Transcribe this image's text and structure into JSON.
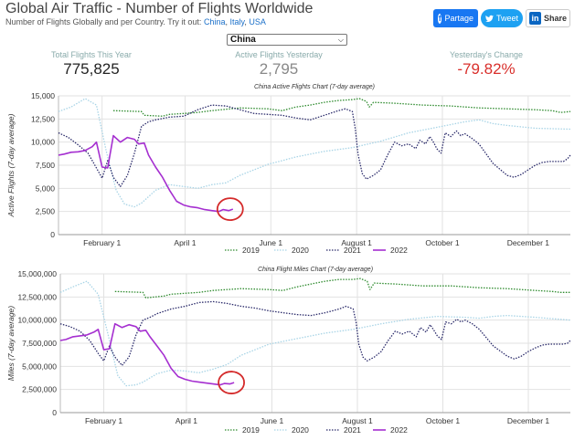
{
  "header": {
    "title": "Global Air Traffic - Number of Flights Worldwide",
    "subtitle_prefix": "Number of Flights Globally and per Country. Try it out: ",
    "links": [
      "China",
      "Italy",
      "USA"
    ]
  },
  "share": {
    "facebook": "Partage",
    "twitter": "Tweet",
    "linkedin": "Share"
  },
  "country_select": {
    "value": "China"
  },
  "stats": [
    {
      "label": "Total Flights This Year",
      "value": "775,825",
      "color": "#222222"
    },
    {
      "label": "Active Flights Yesterday",
      "value": "2,795",
      "color": "#888888"
    },
    {
      "label": "Yesterday's Change",
      "value": "-79.82%",
      "color": "#d9302c"
    }
  ],
  "colors": {
    "y2019": "#2e8b2e",
    "y2020": "#a8d4e6",
    "y2021": "#2a2a6a",
    "y2022": "#a52fd0",
    "circle": "#d42a2a"
  },
  "chart_data": [
    {
      "type": "line",
      "title": "China Active Flights Chart (7-day average)",
      "ylabel": "Active Flights (7-day average)",
      "x_ticks": [
        "February 1",
        "April 1",
        "June 1",
        "August 1",
        "October 1",
        "December 1"
      ],
      "ylim": [
        0,
        15000
      ],
      "y_ticks": [
        "0",
        "2,500",
        "5,000",
        "7,500",
        "10,000",
        "12,500",
        "15,000"
      ],
      "day_of_year_range": [
        1,
        365
      ],
      "series": [
        {
          "name": "2019",
          "x": [
            40,
            60,
            62,
            75,
            80,
            90,
            100,
            110,
            130,
            150,
            160,
            170,
            180,
            190,
            200,
            210,
            215,
            220,
            222,
            225,
            240,
            260,
            280,
            300,
            320,
            340,
            352,
            358,
            365
          ],
          "y": [
            13400,
            13300,
            12900,
            12800,
            13000,
            13100,
            13200,
            13400,
            13700,
            13600,
            13400,
            13800,
            14000,
            14300,
            14500,
            14600,
            14700,
            14400,
            13800,
            14300,
            14200,
            14000,
            13900,
            13700,
            13600,
            13500,
            13400,
            13200,
            13300
          ]
        },
        {
          "name": "2020",
          "x": [
            1,
            10,
            20,
            28,
            35,
            42,
            48,
            55,
            60,
            70,
            80,
            90,
            100,
            110,
            120,
            130,
            150,
            170,
            190,
            210,
            230,
            250,
            270,
            290,
            300,
            310,
            320,
            340,
            365
          ],
          "y": [
            13300,
            13800,
            14700,
            14000,
            9000,
            4800,
            3300,
            3000,
            3400,
            4800,
            5400,
            5200,
            5000,
            5400,
            5600,
            6400,
            7600,
            8400,
            9000,
            9400,
            10100,
            11000,
            11600,
            12200,
            12400,
            12000,
            11800,
            11500,
            11400
          ]
        },
        {
          "name": "2021",
          "x": [
            1,
            8,
            15,
            22,
            28,
            32,
            36,
            40,
            45,
            50,
            55,
            60,
            65,
            70,
            80,
            90,
            100,
            110,
            120,
            130,
            140,
            150,
            160,
            170,
            180,
            190,
            200,
            205,
            210,
            212,
            214,
            217,
            220,
            225,
            230,
            235,
            240,
            245,
            250,
            255,
            258,
            262,
            265,
            268,
            270,
            273,
            276,
            280,
            284,
            287,
            290,
            295,
            300,
            310,
            320,
            325,
            330,
            335,
            340,
            345,
            350,
            355,
            360,
            363,
            365
          ],
          "y": [
            11000,
            10500,
            9700,
            8800,
            7200,
            6100,
            8000,
            6200,
            5200,
            6400,
            8800,
            11700,
            12200,
            12400,
            12700,
            12800,
            13500,
            14000,
            13900,
            13500,
            13100,
            13000,
            12900,
            12600,
            12400,
            12900,
            13400,
            13600,
            13300,
            11500,
            8700,
            6600,
            6000,
            6400,
            7000,
            8600,
            10000,
            9600,
            9800,
            9300,
            10200,
            9800,
            10600,
            9900,
            9300,
            8800,
            11000,
            10600,
            11200,
            10700,
            10900,
            10400,
            9800,
            7700,
            6400,
            6200,
            6500,
            7000,
            7500,
            7800,
            7900,
            7900,
            7900,
            8200,
            8600
          ]
        },
        {
          "name": "2022",
          "x": [
            1,
            5,
            10,
            15,
            20,
            25,
            28,
            32,
            36,
            40,
            45,
            50,
            55,
            58,
            62,
            65,
            70,
            75,
            80,
            85,
            90,
            95,
            100,
            105,
            110,
            115,
            118,
            122,
            125
          ],
          "y": [
            8600,
            8700,
            8900,
            8950,
            9100,
            9500,
            10000,
            7300,
            7200,
            10700,
            10000,
            10500,
            10300,
            9800,
            9900,
            8600,
            7300,
            6200,
            4800,
            3600,
            3200,
            3000,
            2900,
            2700,
            2600,
            2500,
            2700,
            2600,
            2750
          ]
        }
      ]
    },
    {
      "type": "line",
      "title": "China Flight Miles Chart (7-day average)",
      "ylabel": "Miles (7-day average)",
      "x_ticks": [
        "February 1",
        "April 1",
        "June 1",
        "August 1",
        "October 1",
        "December 1"
      ],
      "ylim": [
        0,
        15000000
      ],
      "y_ticks": [
        "0",
        "2,500,000",
        "5,000,000",
        "7,500,000",
        "10,000,000",
        "12,500,000",
        "15,000,000"
      ],
      "day_of_year_range": [
        1,
        365
      ],
      "series": [
        {
          "name": "2019",
          "x": [
            40,
            60,
            62,
            75,
            80,
            90,
            100,
            110,
            130,
            150,
            160,
            170,
            180,
            190,
            200,
            210,
            215,
            220,
            222,
            225,
            240,
            260,
            280,
            300,
            320,
            340,
            352,
            358,
            365
          ],
          "y": [
            13100,
            13000,
            12400,
            12600,
            12800,
            12900,
            13000,
            13200,
            13400,
            13300,
            13200,
            13600,
            13900,
            14200,
            14400,
            14400,
            14500,
            14200,
            13300,
            14000,
            13900,
            13700,
            13700,
            13500,
            13400,
            13200,
            13100,
            13000,
            13000
          ]
        },
        {
          "name": "2020",
          "x": [
            1,
            10,
            20,
            28,
            35,
            42,
            48,
            55,
            60,
            70,
            80,
            90,
            100,
            110,
            120,
            130,
            150,
            170,
            190,
            210,
            230,
            250,
            270,
            290,
            300,
            310,
            320,
            340,
            365
          ],
          "y": [
            13000,
            13600,
            14200,
            12800,
            8500,
            4000,
            2900,
            3000,
            3300,
            4200,
            4600,
            4500,
            4300,
            4700,
            5200,
            6200,
            7400,
            8000,
            8600,
            9000,
            9600,
            10100,
            10400,
            10300,
            10200,
            10400,
            10500,
            10300,
            10000
          ]
        },
        {
          "name": "2021",
          "x": [
            1,
            8,
            15,
            22,
            28,
            32,
            36,
            40,
            45,
            50,
            55,
            60,
            65,
            70,
            80,
            90,
            100,
            110,
            120,
            130,
            140,
            150,
            160,
            170,
            180,
            190,
            200,
            205,
            210,
            212,
            214,
            217,
            220,
            225,
            230,
            235,
            240,
            245,
            250,
            255,
            258,
            262,
            265,
            268,
            270,
            273,
            276,
            280,
            284,
            287,
            290,
            295,
            300,
            310,
            320,
            325,
            330,
            335,
            340,
            345,
            350,
            355,
            360,
            363,
            365
          ],
          "y": [
            9600,
            9300,
            8800,
            7800,
            6400,
            5600,
            7200,
            6000,
            5100,
            6000,
            8400,
            10000,
            10300,
            10700,
            11200,
            11500,
            11900,
            12000,
            11800,
            11500,
            11300,
            11000,
            10800,
            10600,
            10500,
            10800,
            11200,
            11500,
            11200,
            9800,
            7400,
            6000,
            5600,
            6000,
            6600,
            7800,
            8800,
            8500,
            8800,
            8200,
            9200,
            8700,
            9500,
            8800,
            8300,
            7900,
            9800,
            9600,
            10100,
            9800,
            10000,
            9600,
            9000,
            7200,
            6100,
            5800,
            6100,
            6600,
            7000,
            7300,
            7400,
            7400,
            7400,
            7500,
            7800
          ]
        },
        {
          "name": "2022",
          "x": [
            1,
            5,
            10,
            15,
            20,
            25,
            28,
            32,
            36,
            40,
            45,
            50,
            55,
            58,
            62,
            65,
            70,
            75,
            80,
            85,
            90,
            95,
            100,
            105,
            110,
            115,
            118,
            122,
            125
          ],
          "y": [
            7800,
            7900,
            8200,
            8300,
            8400,
            8700,
            9000,
            6800,
            6900,
            9600,
            9200,
            9500,
            9300,
            8800,
            8900,
            8200,
            7200,
            6200,
            4800,
            3900,
            3600,
            3400,
            3300,
            3200,
            3100,
            3000,
            3150,
            3100,
            3250
          ]
        }
      ]
    }
  ]
}
